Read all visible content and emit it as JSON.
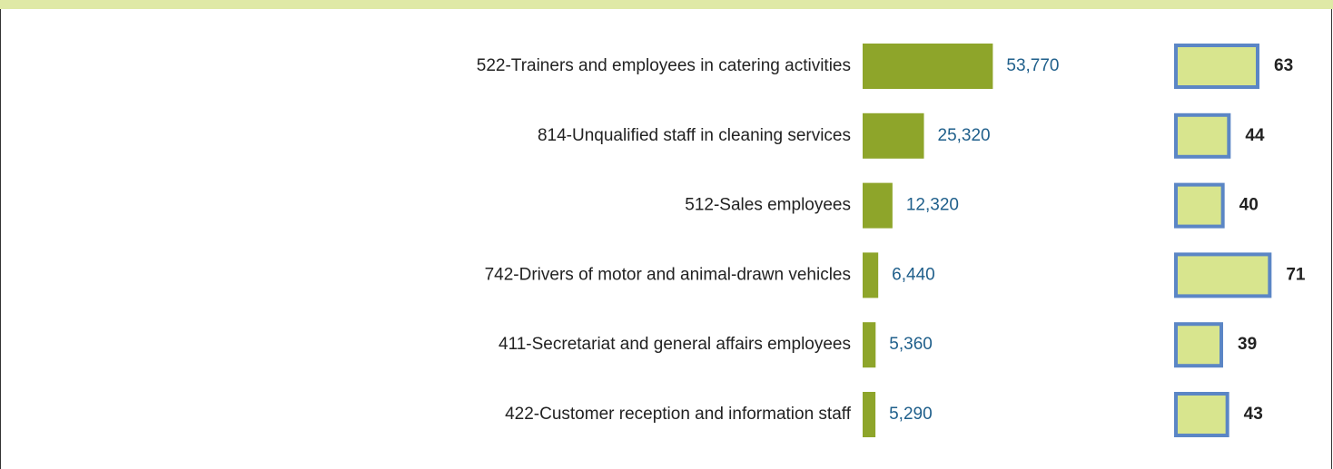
{
  "chart_data": [
    {
      "type": "hbar",
      "categories": [
        "522-Trainers and employees in catering activities",
        "814-Unqualified staff in cleaning services",
        "512-Sales employees",
        "742-Drivers of motor and animal-drawn vehicles",
        "411-Secretariat and general affairs employees",
        "422-Customer reception and information staff"
      ],
      "values": [
        53770,
        25320,
        12320,
        6440,
        5360,
        5290
      ],
      "value_labels": [
        "53,770",
        "25,320",
        "12,320",
        "6,440",
        "5,360",
        "5,290"
      ],
      "color": "#8ea52a",
      "label_color": "#1f5f8b",
      "xlim": [
        0,
        75000
      ]
    },
    {
      "type": "hbar",
      "values": [
        63,
        44,
        40,
        71,
        39,
        43
      ],
      "color": "#d8e58e",
      "edge_color": "#5b86c5",
      "label_color": "#222222",
      "xlim": [
        9,
        81
      ]
    }
  ]
}
